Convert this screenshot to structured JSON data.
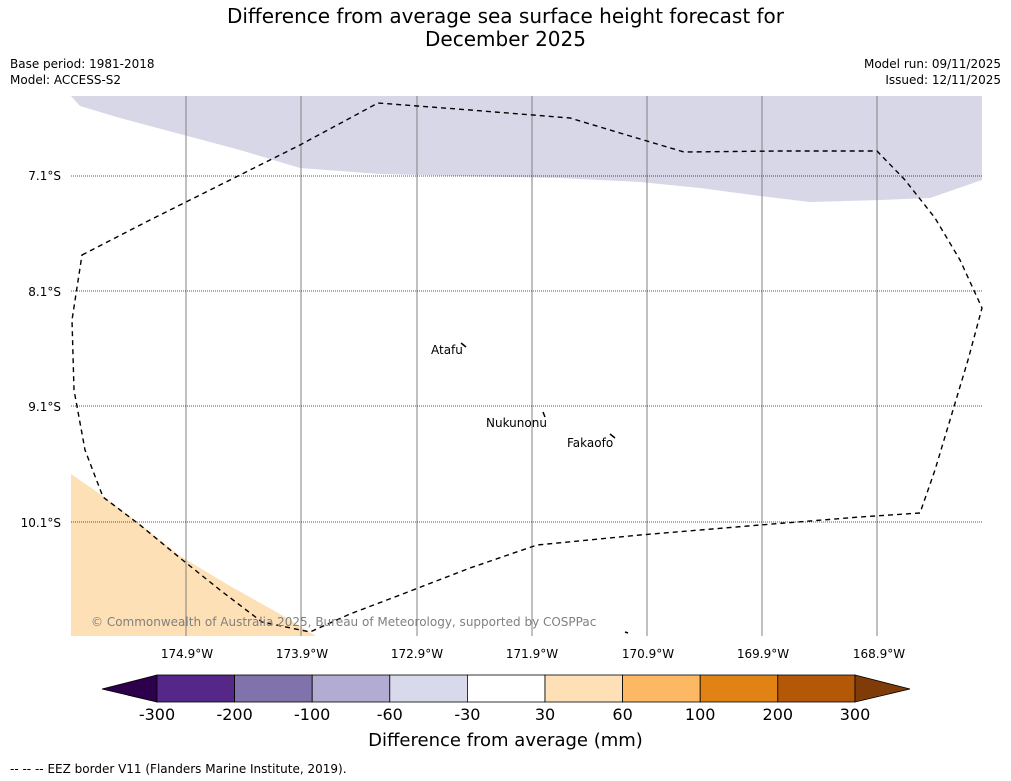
{
  "title": {
    "line1": "Difference from average sea surface height forecast for",
    "line2": "December 2025"
  },
  "meta": {
    "base_period": "Base period: 1981-2018",
    "model": "Model: ACCESS-S2",
    "model_run": "Model run: 09/11/2025",
    "issued": "Issued: 12/11/2025"
  },
  "map": {
    "latitude_labels": [
      "7.1°S",
      "8.1°S",
      "9.1°S",
      "10.1°S"
    ],
    "longitude_labels": [
      "174.9°W",
      "173.9°W",
      "172.9°W",
      "171.9°W",
      "170.9°W",
      "169.9°W",
      "168.9°W"
    ],
    "places": [
      "Atafu",
      "Nukunonu",
      "Fakaofo"
    ],
    "copyright": "© Commonwealth of Australia 2025, Bureau of Meteorology, supported by COSPPac",
    "colors": {
      "light_purple": "#d7d7e8",
      "light_orange": "#fee0b6"
    }
  },
  "colorbar": {
    "tick_labels": [
      "-300",
      "-200",
      "-100",
      "-60",
      "-30",
      "30",
      "60",
      "100",
      "200",
      "300"
    ],
    "colors": [
      "#2d004b",
      "#542788",
      "#8073ac",
      "#b2abd2",
      "#d8daeb",
      "#ffffff",
      "#fee0b6",
      "#fdb863",
      "#e08214",
      "#b35806",
      "#7f3b08"
    ],
    "title": "Difference from average (mm)"
  },
  "legend": {
    "eez_text": "-- EEZ border V11 (Flanders Marine Institute, 2019).",
    "dash_glyph": "--  --"
  }
}
